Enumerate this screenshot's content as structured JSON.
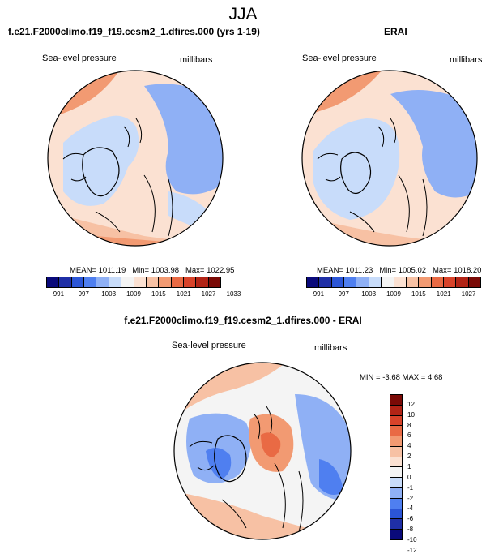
{
  "figure_title": "JJA",
  "panels": {
    "model": {
      "title": "f.e21.F2000climo.f19_f19.cesm2_1.dfires.000 (yrs 1-19)",
      "left_label": "Sea-level pressure",
      "right_label": "millibars",
      "mean_text": "MEAN= 1011.19",
      "min_text": "Min= 1003.98",
      "max_text": "Max= 1022.95"
    },
    "obs": {
      "title": "ERAI",
      "left_label": "Sea-level pressure",
      "right_label": "millibars",
      "mean_text": "MEAN= 1011.23",
      "min_text": "Min= 1005.02",
      "max_text": "Max= 1018.20"
    },
    "diff": {
      "title": "f.e21.F2000climo.f19_f19.cesm2_1.dfires.000 - ERAI",
      "left_label": "Sea-level pressure",
      "right_label": "millibars",
      "minmax_text": "MIN = -3.68 MAX = 4.68"
    }
  },
  "colorbar_abs": {
    "colors": [
      "#0a0a7a",
      "#1f2fa6",
      "#2b55d6",
      "#4f7ff0",
      "#8fb0f5",
      "#c8dcfa",
      "#f4f4f4",
      "#fbe1d2",
      "#f7c1a4",
      "#f29a72",
      "#e96a44",
      "#d8432a",
      "#b22416",
      "#7a0a06"
    ],
    "tick_labels": [
      "991",
      "997",
      "1003",
      "1009",
      "1015",
      "1021",
      "1027",
      "1033"
    ]
  },
  "colorbar_diff": {
    "colors": [
      "#7a0a06",
      "#b22416",
      "#d8432a",
      "#e96a44",
      "#f29a72",
      "#f7c1a4",
      "#fbe1d2",
      "#f4f4f4",
      "#c8dcfa",
      "#8fb0f5",
      "#4f7ff0",
      "#2b55d6",
      "#1f2fa6",
      "#0a0a7a"
    ],
    "tick_labels": [
      "12",
      "10",
      "8",
      "6",
      "4",
      "2",
      "1",
      "0",
      "-1",
      "-2",
      "-4",
      "-6",
      "-8",
      "-10",
      "-12"
    ]
  },
  "map_colors": {
    "bg_light": "#fbe1d2",
    "low_light": "#c8dcfa",
    "low_mid": "#8fb0f5",
    "high_mid": "#f29a72",
    "high_strong": "#e96a44"
  }
}
